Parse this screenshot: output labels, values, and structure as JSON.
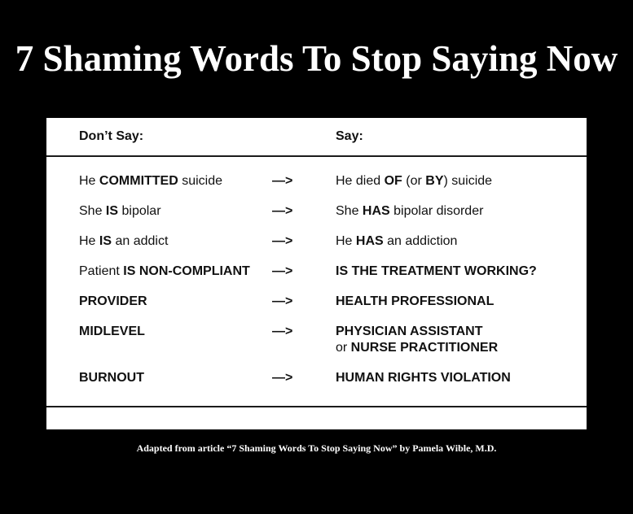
{
  "slide": {
    "title": "7 Shaming Words To Stop Saying Now",
    "footer": "Adapted from article “7 Shaming Words To Stop Saying Now” by Pamela Wible, M.D.",
    "colors": {
      "background": "#000000",
      "panel": "#ffffff",
      "table_text": "#111111",
      "rule": "#1b1b1b",
      "title_text": "#ffffff"
    }
  },
  "table": {
    "headers": {
      "dont_say": "Don’t Say:",
      "say": "Say:"
    },
    "arrow": "—>",
    "rows": [
      {
        "dont_say": [
          {
            "t": "He ",
            "b": false
          },
          {
            "t": "COMMITTED",
            "b": true
          },
          {
            "t": " suicide",
            "b": false
          }
        ],
        "say": [
          {
            "t": "He died ",
            "b": false
          },
          {
            "t": "OF",
            "b": true
          },
          {
            "t": " (or ",
            "b": false
          },
          {
            "t": "BY",
            "b": true
          },
          {
            "t": ") suicide",
            "b": false
          }
        ]
      },
      {
        "dont_say": [
          {
            "t": "She ",
            "b": false
          },
          {
            "t": "IS",
            "b": true
          },
          {
            "t": " bipolar",
            "b": false
          }
        ],
        "say": [
          {
            "t": "She ",
            "b": false
          },
          {
            "t": "HAS",
            "b": true
          },
          {
            "t": " bipolar disorder",
            "b": false
          }
        ]
      },
      {
        "dont_say": [
          {
            "t": "He ",
            "b": false
          },
          {
            "t": "IS",
            "b": true
          },
          {
            "t": " an addict",
            "b": false
          }
        ],
        "say": [
          {
            "t": "He ",
            "b": false
          },
          {
            "t": "HAS",
            "b": true
          },
          {
            "t": " an addiction",
            "b": false
          }
        ]
      },
      {
        "dont_say": [
          {
            "t": "Patient ",
            "b": false
          },
          {
            "t": "IS NON-COMPLIANT",
            "b": true
          }
        ],
        "say": [
          {
            "t": "IS THE TREATMENT WORKING?",
            "b": true
          }
        ]
      },
      {
        "dont_say": [
          {
            "t": "PROVIDER",
            "b": true
          }
        ],
        "say": [
          {
            "t": "HEALTH PROFESSIONAL",
            "b": true
          }
        ]
      },
      {
        "dont_say": [
          {
            "t": "MIDLEVEL",
            "b": true
          }
        ],
        "say": [
          {
            "t": "PHYSICIAN ASSISTANT",
            "b": true
          },
          {
            "br": true
          },
          {
            "t": "or ",
            "b": false
          },
          {
            "t": "NURSE PRACTITIONER",
            "b": true
          }
        ]
      },
      {
        "dont_say": [
          {
            "t": "BURNOUT",
            "b": true
          }
        ],
        "say": [
          {
            "t": "HUMAN RIGHTS VIOLATION",
            "b": true
          }
        ]
      }
    ]
  }
}
